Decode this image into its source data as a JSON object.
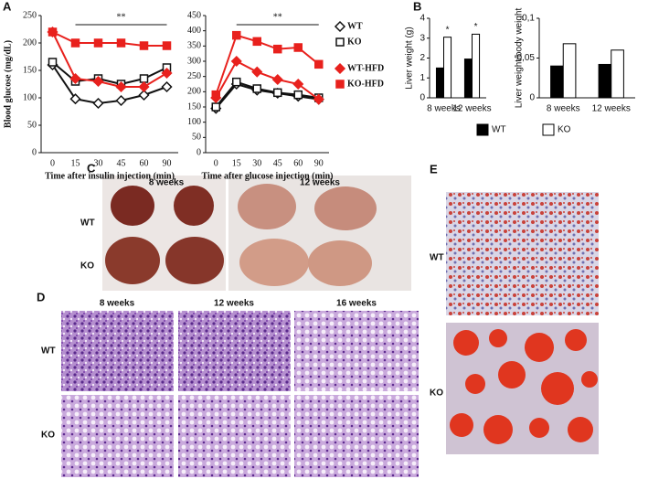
{
  "chart_data": [
    {
      "type": "line",
      "y_label": "Blood glucose (mg/dL)",
      "x_label": "Time after insulin injection (min)",
      "annotation": "**",
      "categories": [
        0,
        15,
        30,
        45,
        60,
        90
      ],
      "ylim": [
        0,
        250
      ],
      "yticks": [
        0,
        50,
        100,
        150,
        200,
        250
      ],
      "series": [
        {
          "color": "#111111",
          "marker": "diamond",
          "filled": false,
          "values": [
            160,
            98,
            90,
            95,
            105,
            120
          ]
        },
        {
          "color": "#111111",
          "marker": "square",
          "filled": false,
          "values": [
            165,
            130,
            135,
            125,
            135,
            155
          ]
        },
        {
          "color": "#e8211d",
          "marker": "diamond",
          "filled": true,
          "values": [
            220,
            135,
            130,
            120,
            120,
            145
          ]
        },
        {
          "color": "#e8211d",
          "marker": "square",
          "filled": true,
          "values": [
            220,
            200,
            200,
            200,
            195,
            195
          ]
        }
      ]
    },
    {
      "type": "line",
      "x_label": "Time after glucose injection (min)",
      "annotation": "**",
      "legend": "right",
      "categories": [
        0,
        15,
        30,
        45,
        60,
        90
      ],
      "ylim": [
        0,
        450
      ],
      "yticks": [
        0,
        50,
        100,
        150,
        200,
        250,
        300,
        350,
        400,
        450
      ],
      "series": [
        {
          "name": "WT",
          "color": "#111111",
          "marker": "diamond",
          "filled": false,
          "values": [
            145,
            225,
            205,
            195,
            185,
            175
          ]
        },
        {
          "name": "KO",
          "color": "#111111",
          "marker": "square",
          "filled": false,
          "values": [
            150,
            232,
            210,
            197,
            190,
            180
          ]
        },
        {
          "name": "WT-HFD",
          "color": "#e8211d",
          "marker": "diamond",
          "filled": true,
          "values": [
            180,
            300,
            265,
            240,
            225,
            175
          ]
        },
        {
          "name": "KO-HFD",
          "color": "#e8211d",
          "marker": "square",
          "filled": true,
          "values": [
            190,
            385,
            365,
            340,
            345,
            290
          ]
        }
      ]
    },
    {
      "type": "bar",
      "y_label": "Liver weight (g)",
      "legend": "bottom",
      "annotations": [
        "*",
        "*"
      ],
      "categories": [
        "8 weeks",
        "12 weeks"
      ],
      "ylim": [
        0,
        4
      ],
      "yticks": [
        0,
        1,
        2,
        3,
        4
      ],
      "series": [
        {
          "name": "WT",
          "color": "#000000",
          "values": [
            1.5,
            1.95
          ]
        },
        {
          "name": "KO",
          "color": "#ffffff",
          "values": [
            3.05,
            3.2
          ]
        }
      ]
    },
    {
      "type": "bar",
      "y_label": "Liver weight/body weight",
      "categories": [
        "8 weeks",
        "12 weeks"
      ],
      "ylim": [
        0,
        0.1
      ],
      "yticks": [
        0,
        {
          "value": 0.05,
          "label": "0,05"
        },
        {
          "value": 0.1,
          "label": "0,1"
        }
      ],
      "series": [
        {
          "color": "#000000",
          "values": [
            0.04,
            0.042
          ]
        },
        {
          "color": "#ffffff",
          "values": [
            0.068,
            0.06
          ]
        }
      ]
    }
  ],
  "panel_labels": [
    "A",
    "B",
    "C",
    "D",
    "E"
  ],
  "panel_c": {
    "columns": [
      "8 weeks",
      "12 weeks"
    ],
    "rows": [
      "WT",
      "KO"
    ]
  },
  "panel_d": {
    "columns": [
      "8 weeks",
      "12 weeks",
      "16 weeks"
    ],
    "rows": [
      "WT",
      "KO"
    ]
  },
  "panel_e": {
    "rows": [
      "WT",
      "KO"
    ]
  }
}
